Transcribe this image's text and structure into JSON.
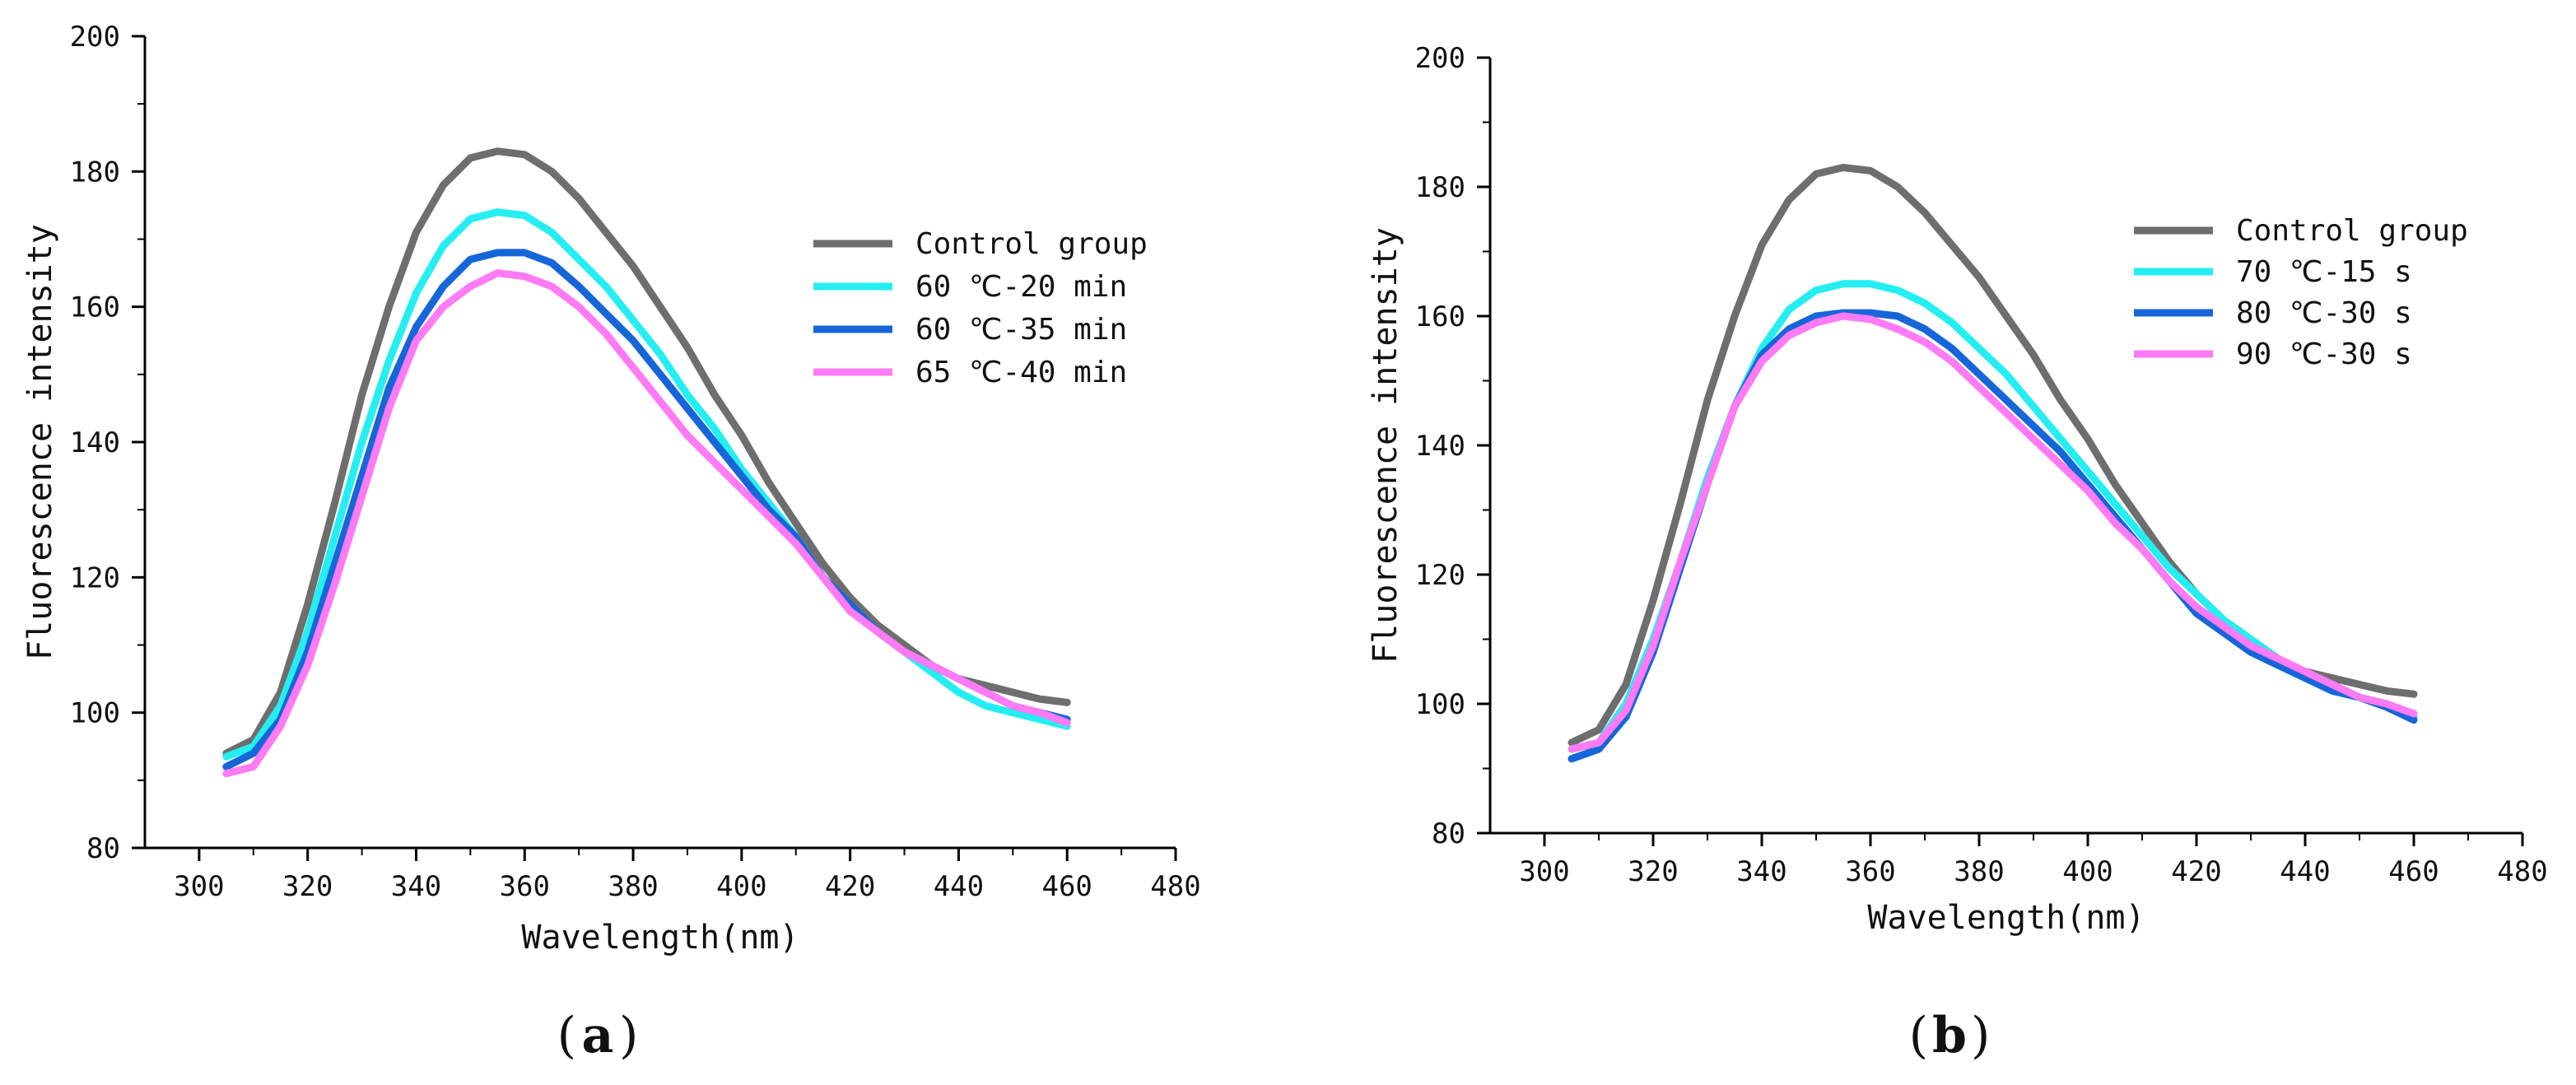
{
  "panels": [
    {
      "label": "(a)",
      "label_letter": "a",
      "chart_data": {
        "type": "line",
        "title": "",
        "xlabel": "Wavelength(nm)",
        "ylabel": "Fluorescence intensity",
        "xlim": [
          290,
          480
        ],
        "ylim": [
          80,
          200
        ],
        "xticks": [
          300,
          320,
          340,
          360,
          380,
          400,
          420,
          440,
          460,
          480
        ],
        "yticks": [
          80,
          100,
          120,
          140,
          160,
          180,
          200
        ],
        "legend_position": "top-right",
        "x": [
          305,
          310,
          315,
          320,
          325,
          330,
          335,
          340,
          345,
          350,
          355,
          360,
          365,
          370,
          375,
          380,
          385,
          390,
          395,
          400,
          405,
          410,
          415,
          420,
          425,
          430,
          435,
          440,
          445,
          450,
          455,
          460
        ],
        "series": [
          {
            "name": "Control group",
            "color": "#6e6e6e",
            "values": [
              94,
              96,
              103,
              116,
              131,
              147,
              160,
              171,
              178,
              182,
              183,
              182.5,
              180,
              176,
              171,
              166,
              160,
              154,
              147,
              141,
              134,
              128,
              122,
              117,
              113,
              110,
              107,
              105,
              104,
              103,
              102,
              101.5
            ]
          },
          {
            "name": "60 ℃-20 min",
            "color": "#25eef2",
            "values": [
              93.5,
              95,
              101,
              112,
              126,
              140,
              152,
              162,
              169,
              173,
              174,
              173.5,
              171,
              167,
              163,
              158,
              153,
              147,
              142,
              136,
              131,
              126,
              120,
              116,
              112,
              109,
              106,
              103,
              101,
              100,
              99,
              98
            ]
          },
          {
            "name": "60 ℃-35 min",
            "color": "#1766d9",
            "values": [
              92,
              94,
              99,
              109,
              122,
              135,
              148,
              157,
              163,
              167,
              168,
              168,
              166.5,
              163,
              159,
              155,
              150,
              145,
              140,
              135,
              130,
              126,
              120,
              116,
              112,
              109,
              107,
              105,
              103,
              101,
              100,
              99
            ]
          },
          {
            "name": "65 ℃-40 min",
            "color": "#ff7af5",
            "values": [
              91,
              92,
              98,
              107,
              119,
              132,
              145,
              155,
              160,
              163,
              165,
              164.5,
              163,
              160,
              156,
              151,
              146,
              141,
              137,
              133,
              129,
              125,
              120,
              115,
              112,
              109,
              107,
              105,
              103,
              101,
              100,
              98.5
            ]
          }
        ]
      }
    },
    {
      "label": "(b)",
      "label_letter": "b",
      "chart_data": {
        "type": "line",
        "title": "",
        "xlabel": "Wavelength(nm)",
        "ylabel": "Fluorescence intensity",
        "xlim": [
          290,
          480
        ],
        "ylim": [
          80,
          200
        ],
        "xticks": [
          300,
          320,
          340,
          360,
          380,
          400,
          420,
          440,
          460,
          480
        ],
        "yticks": [
          80,
          100,
          120,
          140,
          160,
          180,
          200
        ],
        "legend_position": "top-right",
        "x": [
          305,
          310,
          315,
          320,
          325,
          330,
          335,
          340,
          345,
          350,
          355,
          360,
          365,
          370,
          375,
          380,
          385,
          390,
          395,
          400,
          405,
          410,
          415,
          420,
          425,
          430,
          435,
          440,
          445,
          450,
          455,
          460
        ],
        "series": [
          {
            "name": "Control group",
            "color": "#6e6e6e",
            "values": [
              94,
              96,
              103,
              116,
              131,
              147,
              160,
              171,
              178,
              182,
              183,
              182.5,
              180,
              176,
              171,
              166,
              160,
              154,
              147,
              141,
              134,
              128,
              122,
              117,
              113,
              110,
              107,
              105,
              104,
              103,
              102,
              101.5
            ]
          },
          {
            "name": "70 ℃-15 s",
            "color": "#25eef2",
            "values": [
              93,
              94,
              100,
              110,
              122,
              135,
              146,
              155,
              161,
              164,
              165,
              165,
              164,
              162,
              159,
              155,
              151,
              146,
              141,
              136,
              131,
              126,
              121,
              117,
              113,
              110,
              107,
              105,
              103,
              101,
              100,
              98
            ]
          },
          {
            "name": "80 ℃-30 s",
            "color": "#1766d9",
            "values": [
              91.5,
              93,
              98,
              108,
              121,
              134,
              146,
              154,
              158,
              160,
              160.5,
              160.5,
              160,
              158,
              155,
              151,
              147,
              143,
              139,
              134,
              129,
              124,
              119,
              114,
              111,
              108,
              106,
              104,
              102,
              101,
              99.5,
              97.5
            ]
          },
          {
            "name": "90 ℃-30 s",
            "color": "#ff7af5",
            "values": [
              93,
              94,
              99,
              109,
              122,
              134,
              146,
              153,
              157,
              159,
              160,
              159.5,
              158,
              156,
              153,
              149,
              145,
              141,
              137,
              133,
              128,
              124,
              119,
              115,
              112,
              109,
              107,
              105,
              103,
              101,
              100,
              98.5
            ]
          }
        ]
      }
    }
  ]
}
